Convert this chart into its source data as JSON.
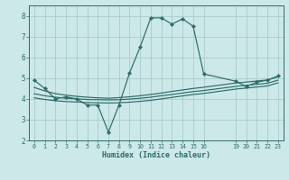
{
  "title": "",
  "xlabel": "Humidex (Indice chaleur)",
  "ylabel": "",
  "bg_color": "#cce8e8",
  "line_color": "#2e6b6b",
  "grid_color": "#b8d8d8",
  "xlim": [
    -0.5,
    23.5
  ],
  "ylim": [
    2,
    8.5
  ],
  "yticks": [
    2,
    3,
    4,
    5,
    6,
    7,
    8
  ],
  "xticks": [
    0,
    1,
    2,
    3,
    4,
    5,
    6,
    7,
    8,
    9,
    10,
    11,
    12,
    13,
    14,
    15,
    16,
    19,
    20,
    21,
    22,
    23
  ],
  "line1_x": [
    0,
    1,
    2,
    3,
    4,
    5,
    6,
    7,
    8,
    9,
    10,
    11,
    12,
    13,
    14,
    15,
    16,
    19,
    20,
    21,
    22,
    23
  ],
  "line1_y": [
    4.9,
    4.5,
    4.0,
    4.1,
    4.0,
    3.7,
    3.7,
    2.4,
    3.7,
    5.25,
    6.5,
    7.9,
    7.9,
    7.6,
    7.85,
    7.5,
    5.2,
    4.85,
    4.6,
    4.8,
    4.9,
    5.1
  ],
  "line2_x": [
    0,
    1,
    2,
    3,
    4,
    5,
    6,
    7,
    8,
    9,
    10,
    11,
    12,
    13,
    14,
    15,
    16,
    19,
    20,
    21,
    22,
    23
  ],
  "line2_y": [
    4.55,
    4.38,
    4.25,
    4.18,
    4.12,
    4.08,
    4.05,
    4.03,
    4.06,
    4.1,
    4.15,
    4.21,
    4.28,
    4.36,
    4.43,
    4.5,
    4.56,
    4.76,
    4.81,
    4.86,
    4.91,
    5.06
  ],
  "line3_x": [
    0,
    1,
    2,
    3,
    4,
    5,
    6,
    7,
    8,
    9,
    10,
    11,
    12,
    13,
    14,
    15,
    16,
    19,
    20,
    21,
    22,
    23
  ],
  "line3_y": [
    4.25,
    4.15,
    4.08,
    4.03,
    4.0,
    3.97,
    3.96,
    3.95,
    3.96,
    3.99,
    4.03,
    4.08,
    4.15,
    4.21,
    4.28,
    4.35,
    4.4,
    4.6,
    4.65,
    4.7,
    4.75,
    4.9
  ],
  "line4_x": [
    0,
    1,
    2,
    3,
    4,
    5,
    6,
    7,
    8,
    9,
    10,
    11,
    12,
    13,
    14,
    15,
    16,
    19,
    20,
    21,
    22,
    23
  ],
  "line4_y": [
    4.05,
    3.97,
    3.91,
    3.87,
    3.85,
    3.82,
    3.81,
    3.8,
    3.81,
    3.84,
    3.88,
    3.93,
    4.0,
    4.07,
    4.14,
    4.21,
    4.26,
    4.47,
    4.52,
    4.57,
    4.62,
    4.77
  ]
}
